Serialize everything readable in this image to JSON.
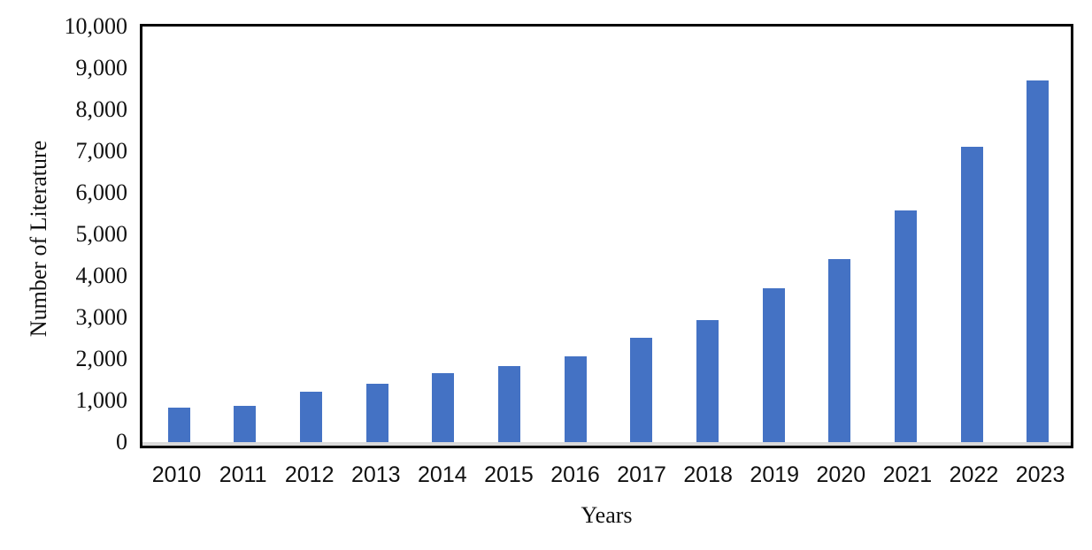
{
  "figure": {
    "background": "#ffffff"
  },
  "chart_data": {
    "type": "bar",
    "title": "",
    "xlabel": "Years",
    "ylabel": "Number of Literature",
    "categories": [
      "2010",
      "2011",
      "2012",
      "2013",
      "2014",
      "2015",
      "2016",
      "2017",
      "2018",
      "2019",
      "2020",
      "2021",
      "2022",
      "2023"
    ],
    "values": [
      840,
      880,
      1210,
      1400,
      1660,
      1830,
      2070,
      2510,
      2930,
      3700,
      4410,
      5570,
      7110,
      8710
    ],
    "ylim": [
      0,
      10000
    ],
    "yticks": [
      0,
      1000,
      2000,
      3000,
      4000,
      5000,
      6000,
      7000,
      8000,
      9000,
      10000
    ],
    "ytick_labels": [
      "0",
      "1,000",
      "2,000",
      "3,000",
      "4,000",
      "5,000",
      "6,000",
      "7,000",
      "8,000",
      "9,000",
      "10,000"
    ],
    "bar_color": "#4472C4",
    "frame_color": "#000000",
    "baseline_color": "#d9d9d9",
    "grid": false,
    "legend": "none"
  }
}
